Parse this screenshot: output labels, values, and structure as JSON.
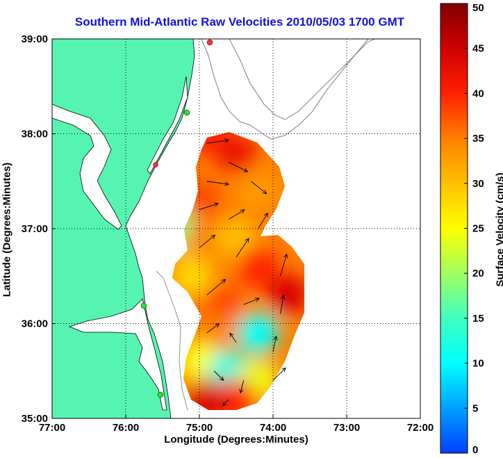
{
  "chart_data": {
    "type": "heatmap",
    "title": "Southern Mid-Atlantic Raw Velocities 2010/05/03 1700 GMT",
    "xlabel": "Longitude (Degrees:Minutes)",
    "ylabel": "Latitude (Degrees:Minutes)",
    "colorbar_label": "Surface Velocity (cm/s)",
    "x_ticks": [
      {
        "value": -77,
        "label": "77:00"
      },
      {
        "value": -76,
        "label": "76:00"
      },
      {
        "value": -75,
        "label": "75:00"
      },
      {
        "value": -74,
        "label": "74:00"
      },
      {
        "value": -73,
        "label": "73:00"
      },
      {
        "value": -72,
        "label": "72:00"
      }
    ],
    "y_ticks": [
      {
        "value": 35,
        "label": "35:00"
      },
      {
        "value": 36,
        "label": "36:00"
      },
      {
        "value": 37,
        "label": "37:00"
      },
      {
        "value": 38,
        "label": "38:00"
      },
      {
        "value": 39,
        "label": "39:00"
      }
    ],
    "xlim": [
      -77,
      -72
    ],
    "ylim": [
      35,
      39
    ],
    "grid": true,
    "colorbar_ticks": [
      "0",
      "5",
      "10",
      "15",
      "20",
      "25",
      "30",
      "35",
      "40",
      "45",
      "50"
    ],
    "colorbar_range": [
      0,
      50
    ],
    "colormap": [
      "#0040ff",
      "#00a0ff",
      "#00ffff",
      "#40ffc0",
      "#a0ff60",
      "#ffff00",
      "#ffc000",
      "#ff8000",
      "#ff2000",
      "#d00000",
      "#800000"
    ],
    "land_color": "#55f5b0",
    "field_samples": [
      {
        "lon": -74.9,
        "lat": 38.0,
        "speed": 40
      },
      {
        "lon": -74.5,
        "lat": 37.8,
        "speed": 42
      },
      {
        "lon": -74.2,
        "lat": 37.4,
        "speed": 33
      },
      {
        "lon": -75.0,
        "lat": 37.3,
        "speed": 38
      },
      {
        "lon": -75.3,
        "lat": 37.0,
        "speed": 18
      },
      {
        "lon": -74.9,
        "lat": 36.9,
        "speed": 35
      },
      {
        "lon": -74.5,
        "lat": 36.9,
        "speed": 30
      },
      {
        "lon": -75.1,
        "lat": 36.5,
        "speed": 28
      },
      {
        "lon": -74.2,
        "lat": 36.6,
        "speed": 40
      },
      {
        "lon": -73.8,
        "lat": 36.3,
        "speed": 44
      },
      {
        "lon": -74.7,
        "lat": 36.2,
        "speed": 38
      },
      {
        "lon": -74.2,
        "lat": 35.9,
        "speed": 10
      },
      {
        "lon": -74.8,
        "lat": 35.9,
        "speed": 35
      },
      {
        "lon": -75.0,
        "lat": 35.6,
        "speed": 25
      },
      {
        "lon": -74.6,
        "lat": 35.5,
        "speed": 12
      },
      {
        "lon": -74.2,
        "lat": 35.4,
        "speed": 24
      },
      {
        "lon": -74.5,
        "lat": 35.2,
        "speed": 40
      },
      {
        "lon": -74.9,
        "lat": 35.2,
        "speed": 44
      }
    ],
    "vector_samples": [
      {
        "lon": -74.9,
        "lat": 37.9,
        "u": 35,
        "v": 5
      },
      {
        "lon": -74.6,
        "lat": 37.7,
        "u": 30,
        "v": -15
      },
      {
        "lon": -74.3,
        "lat": 37.5,
        "u": 25,
        "v": -20
      },
      {
        "lon": -74.9,
        "lat": 37.5,
        "u": 35,
        "v": -5
      },
      {
        "lon": -75.0,
        "lat": 37.2,
        "u": 30,
        "v": 10
      },
      {
        "lon": -74.6,
        "lat": 37.1,
        "u": 25,
        "v": 15
      },
      {
        "lon": -74.2,
        "lat": 37.0,
        "u": 15,
        "v": 25
      },
      {
        "lon": -75.0,
        "lat": 36.8,
        "u": 25,
        "v": 20
      },
      {
        "lon": -74.5,
        "lat": 36.7,
        "u": 20,
        "v": 30
      },
      {
        "lon": -73.9,
        "lat": 36.5,
        "u": 10,
        "v": 35
      },
      {
        "lon": -74.9,
        "lat": 36.3,
        "u": 30,
        "v": 25
      },
      {
        "lon": -74.4,
        "lat": 36.2,
        "u": 25,
        "v": 10
      },
      {
        "lon": -73.9,
        "lat": 36.1,
        "u": 5,
        "v": 30
      },
      {
        "lon": -74.9,
        "lat": 35.9,
        "u": 20,
        "v": 15
      },
      {
        "lon": -74.5,
        "lat": 35.8,
        "u": -10,
        "v": 15
      },
      {
        "lon": -74.0,
        "lat": 35.7,
        "u": 5,
        "v": 25
      },
      {
        "lon": -74.8,
        "lat": 35.5,
        "u": 15,
        "v": -15
      },
      {
        "lon": -74.4,
        "lat": 35.4,
        "u": -5,
        "v": -20
      },
      {
        "lon": -74.0,
        "lat": 35.4,
        "u": 20,
        "v": 20
      },
      {
        "lon": -74.6,
        "lat": 35.2,
        "u": -10,
        "v": -10
      }
    ]
  }
}
